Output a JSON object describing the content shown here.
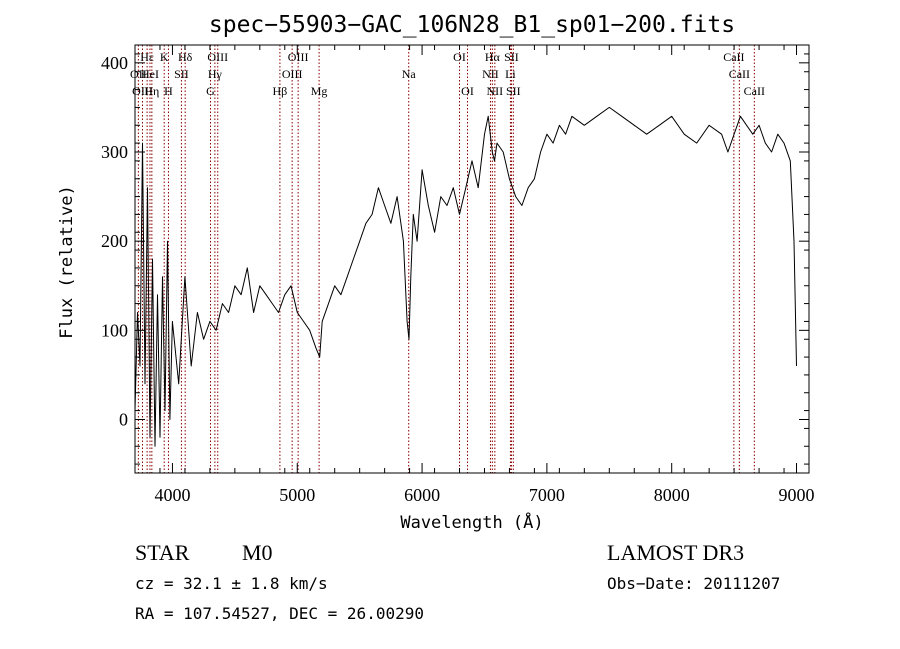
{
  "chart_data": {
    "type": "line",
    "title": "spec−55903−GAC_106N28_B1_sp01−200.fits",
    "xlabel": "Wavelength (Å)",
    "ylabel": "Flux (relative)",
    "xlim": [
      3700,
      9100
    ],
    "ylim": [
      -60,
      420
    ],
    "xticks": [
      4000,
      5000,
      6000,
      7000,
      8000,
      9000
    ],
    "yticks": [
      0,
      100,
      200,
      300,
      400
    ],
    "series": [
      {
        "name": "flux",
        "x": [
          3700,
          3720,
          3740,
          3760,
          3780,
          3800,
          3820,
          3840,
          3860,
          3880,
          3900,
          3920,
          3940,
          3960,
          3980,
          4000,
          4050,
          4100,
          4150,
          4200,
          4250,
          4300,
          4350,
          4400,
          4450,
          4500,
          4550,
          4600,
          4650,
          4700,
          4750,
          4800,
          4850,
          4900,
          4950,
          5000,
          5050,
          5100,
          5150,
          5180,
          5200,
          5250,
          5300,
          5350,
          5400,
          5450,
          5500,
          5550,
          5600,
          5650,
          5700,
          5750,
          5800,
          5850,
          5880,
          5895,
          5910,
          5930,
          5960,
          6000,
          6050,
          6100,
          6150,
          6200,
          6250,
          6300,
          6350,
          6400,
          6450,
          6500,
          6530,
          6563,
          6580,
          6600,
          6650,
          6700,
          6750,
          6800,
          6850,
          6900,
          6950,
          7000,
          7050,
          7100,
          7150,
          7200,
          7300,
          7400,
          7500,
          7600,
          7700,
          7800,
          7900,
          8000,
          8100,
          8200,
          8300,
          8400,
          8450,
          8500,
          8550,
          8600,
          8650,
          8700,
          8750,
          8800,
          8850,
          8900,
          8950,
          8980,
          9000
        ],
        "y": [
          10,
          120,
          60,
          310,
          40,
          260,
          -20,
          180,
          -30,
          140,
          -20,
          160,
          10,
          200,
          0,
          110,
          40,
          160,
          60,
          120,
          90,
          110,
          100,
          130,
          120,
          150,
          140,
          170,
          120,
          150,
          140,
          130,
          120,
          140,
          150,
          120,
          110,
          100,
          80,
          70,
          110,
          130,
          150,
          140,
          160,
          180,
          200,
          220,
          230,
          260,
          240,
          220,
          250,
          200,
          110,
          90,
          160,
          230,
          200,
          280,
          240,
          210,
          250,
          240,
          260,
          230,
          260,
          290,
          260,
          320,
          340,
          300,
          290,
          310,
          300,
          270,
          250,
          240,
          260,
          270,
          300,
          320,
          310,
          330,
          320,
          340,
          330,
          340,
          350,
          340,
          330,
          320,
          330,
          340,
          320,
          310,
          330,
          320,
          300,
          320,
          340,
          330,
          320,
          330,
          310,
          300,
          320,
          310,
          290,
          200,
          60
        ]
      }
    ],
    "spectral_lines": [
      {
        "label": "Hε",
        "wavelength": 3797,
        "row": 1
      },
      {
        "label": "OII",
        "wavelength": 3727,
        "row": 2
      },
      {
        "label": "HeI",
        "wavelength": 3820,
        "row": 2
      },
      {
        "label": "OIII",
        "wavelength": 3760,
        "row": 3
      },
      {
        "label": "Hη",
        "wavelength": 3835,
        "row": 3
      },
      {
        "label": "K",
        "wavelength": 3934,
        "row": 1
      },
      {
        "label": "SII",
        "wavelength": 4072,
        "row": 2
      },
      {
        "label": "H",
        "wavelength": 3968,
        "row": 3
      },
      {
        "label": "Hδ",
        "wavelength": 4102,
        "row": 1
      },
      {
        "label": "OIII",
        "wavelength": 4363,
        "row": 1
      },
      {
        "label": "Hγ",
        "wavelength": 4340,
        "row": 2
      },
      {
        "label": "G",
        "wavelength": 4305,
        "row": 3
      },
      {
        "label": "OIII",
        "wavelength": 5007,
        "row": 1
      },
      {
        "label": "OIII",
        "wavelength": 4959,
        "row": 2
      },
      {
        "label": "Hβ",
        "wavelength": 4861,
        "row": 3
      },
      {
        "label": "Mg",
        "wavelength": 5175,
        "row": 3
      },
      {
        "label": "Na",
        "wavelength": 5893,
        "row": 2
      },
      {
        "label": "OI",
        "wavelength": 6300,
        "row": 1
      },
      {
        "label": "OI",
        "wavelength": 6364,
        "row": 3
      },
      {
        "label": "Hα",
        "wavelength": 6563,
        "row": 1
      },
      {
        "label": "SII",
        "wavelength": 6716,
        "row": 1
      },
      {
        "label": "NII",
        "wavelength": 6548,
        "row": 2
      },
      {
        "label": "Li",
        "wavelength": 6708,
        "row": 2
      },
      {
        "label": "NII",
        "wavelength": 6583,
        "row": 3
      },
      {
        "label": "SII",
        "wavelength": 6731,
        "row": 3
      },
      {
        "label": "CaII",
        "wavelength": 8498,
        "row": 1
      },
      {
        "label": "CaII",
        "wavelength": 8542,
        "row": 2
      },
      {
        "label": "CaII",
        "wavelength": 8662,
        "row": 3
      }
    ],
    "line_color": "#8b0000",
    "series_color": "#000000"
  },
  "info": {
    "class": "STAR",
    "subclass": "M0",
    "survey": "LAMOST DR3",
    "cz": "cz = 32.1 ± 1.8 km/s",
    "obs_date": "Obs−Date: 20111207",
    "radec": "RA = 107.54527, DEC =  26.00290"
  }
}
